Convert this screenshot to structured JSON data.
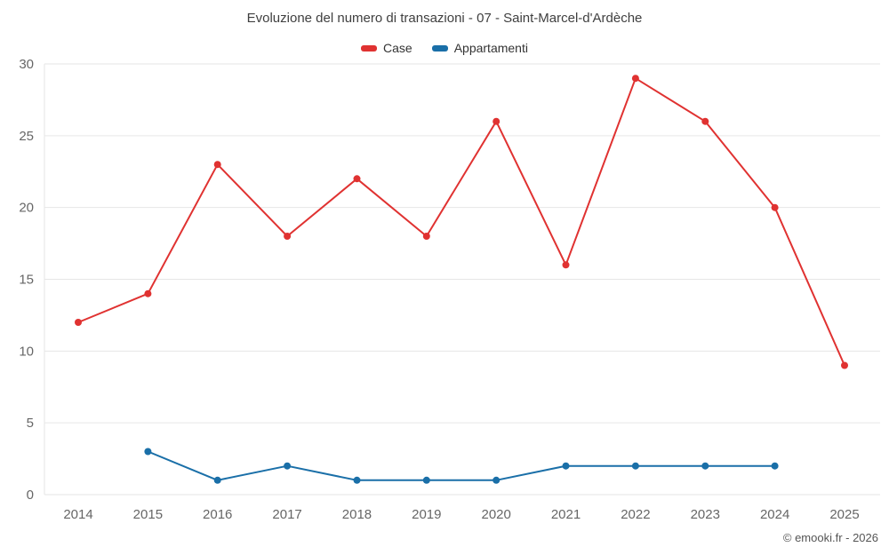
{
  "footer": {
    "copyright": "© emooki.fr - 2026"
  },
  "chart_data": {
    "type": "line",
    "title": "Evoluzione del numero di transazioni - 07 - Saint-Marcel-d'Ardèche",
    "xlabel": "",
    "ylabel": "",
    "x": [
      2014,
      2015,
      2016,
      2017,
      2018,
      2019,
      2020,
      2021,
      2022,
      2023,
      2024,
      2025
    ],
    "series": [
      {
        "name": "Case",
        "color": "#e03231",
        "values": [
          12,
          14,
          23,
          18,
          22,
          18,
          26,
          16,
          29,
          26,
          20,
          9
        ]
      },
      {
        "name": "Appartamenti",
        "color": "#1a6fa8",
        "values": [
          null,
          3,
          1,
          2,
          1,
          1,
          1,
          2,
          2,
          2,
          2,
          null
        ]
      }
    ],
    "ylim": [
      0,
      30
    ],
    "yticks": [
      0,
      5,
      10,
      15,
      20,
      25,
      30
    ],
    "grid": true,
    "legend_position": "top",
    "grid_color": "#e6e6e6",
    "tick_label_color": "#666666"
  }
}
